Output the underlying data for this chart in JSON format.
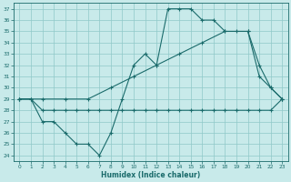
{
  "xlabel": "Humidex (Indice chaleur)",
  "bg_color": "#c8eaea",
  "grid_color": "#8fc8c8",
  "line_color": "#1a6b6b",
  "xlim": [
    -0.5,
    23.5
  ],
  "ylim": [
    23.5,
    37.5
  ],
  "xticks": [
    0,
    1,
    2,
    3,
    4,
    5,
    6,
    7,
    8,
    9,
    10,
    11,
    12,
    13,
    14,
    15,
    16,
    17,
    18,
    19,
    20,
    21,
    22,
    23
  ],
  "yticks": [
    24,
    25,
    26,
    27,
    28,
    29,
    30,
    31,
    32,
    33,
    34,
    35,
    36,
    37
  ],
  "series1_x": [
    0,
    1,
    2,
    3,
    4,
    5,
    6,
    7,
    8,
    9,
    10,
    11,
    12,
    13,
    14,
    15,
    16,
    17,
    18,
    19,
    20,
    21,
    22,
    23
  ],
  "series1_y": [
    29,
    29,
    27,
    27,
    26,
    25,
    25,
    24,
    26,
    29,
    32,
    33,
    32,
    37,
    37,
    37,
    36,
    36,
    35,
    35,
    35,
    31,
    30,
    29
  ],
  "series2_x": [
    0,
    2,
    4,
    6,
    8,
    10,
    12,
    14,
    16,
    18,
    20,
    21,
    22,
    23
  ],
  "series2_y": [
    29,
    29,
    29,
    29,
    30,
    31,
    32,
    33,
    34,
    35,
    35,
    32,
    30,
    29
  ],
  "series3_x": [
    0,
    1,
    2,
    3,
    4,
    5,
    6,
    7,
    8,
    9,
    10,
    11,
    12,
    13,
    14,
    15,
    16,
    17,
    18,
    19,
    20,
    21,
    22,
    23
  ],
  "series3_y": [
    29,
    29,
    28,
    28,
    28,
    28,
    28,
    28,
    28,
    28,
    28,
    28,
    28,
    28,
    28,
    28,
    28,
    28,
    28,
    28,
    28,
    28,
    28,
    29
  ]
}
